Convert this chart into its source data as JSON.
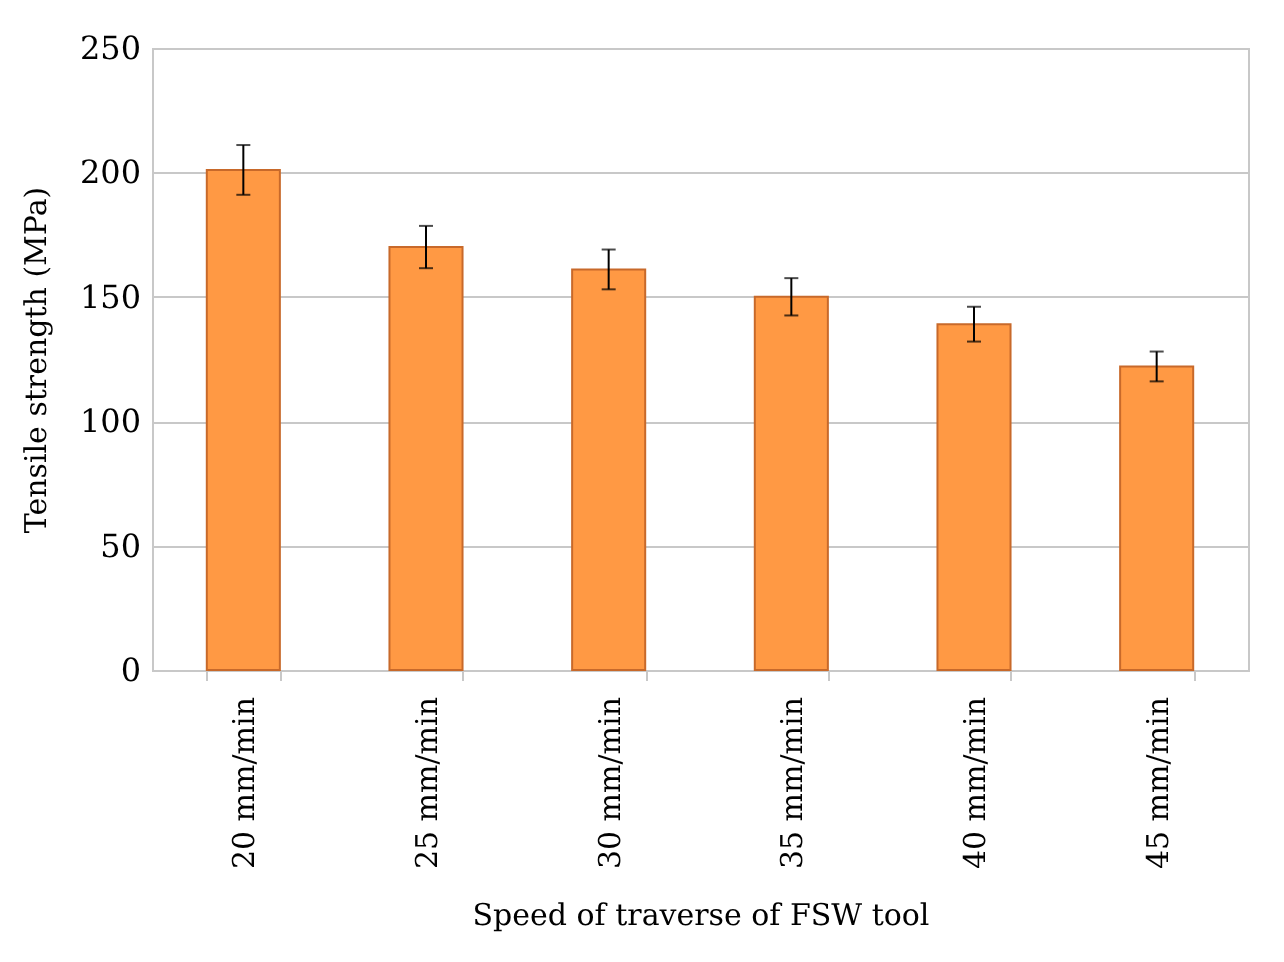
{
  "chart_data": {
    "type": "bar",
    "xlabel": "Speed of traverse of FSW tool",
    "ylabel": "Tensile strength (MPa)",
    "categories": [
      "20 mm/min",
      "25 mm/min",
      "30 mm/min",
      "35 mm/min",
      "40 mm/min",
      "45 mm/min"
    ],
    "values": [
      201,
      170,
      161,
      150,
      139,
      122
    ],
    "errors": [
      10,
      8.5,
      8,
      7.5,
      7,
      6
    ],
    "color": "#ff9944",
    "ylim": [
      0,
      250
    ],
    "yticks": [
      0,
      50,
      100,
      150,
      200,
      250
    ],
    "grid": "y"
  }
}
